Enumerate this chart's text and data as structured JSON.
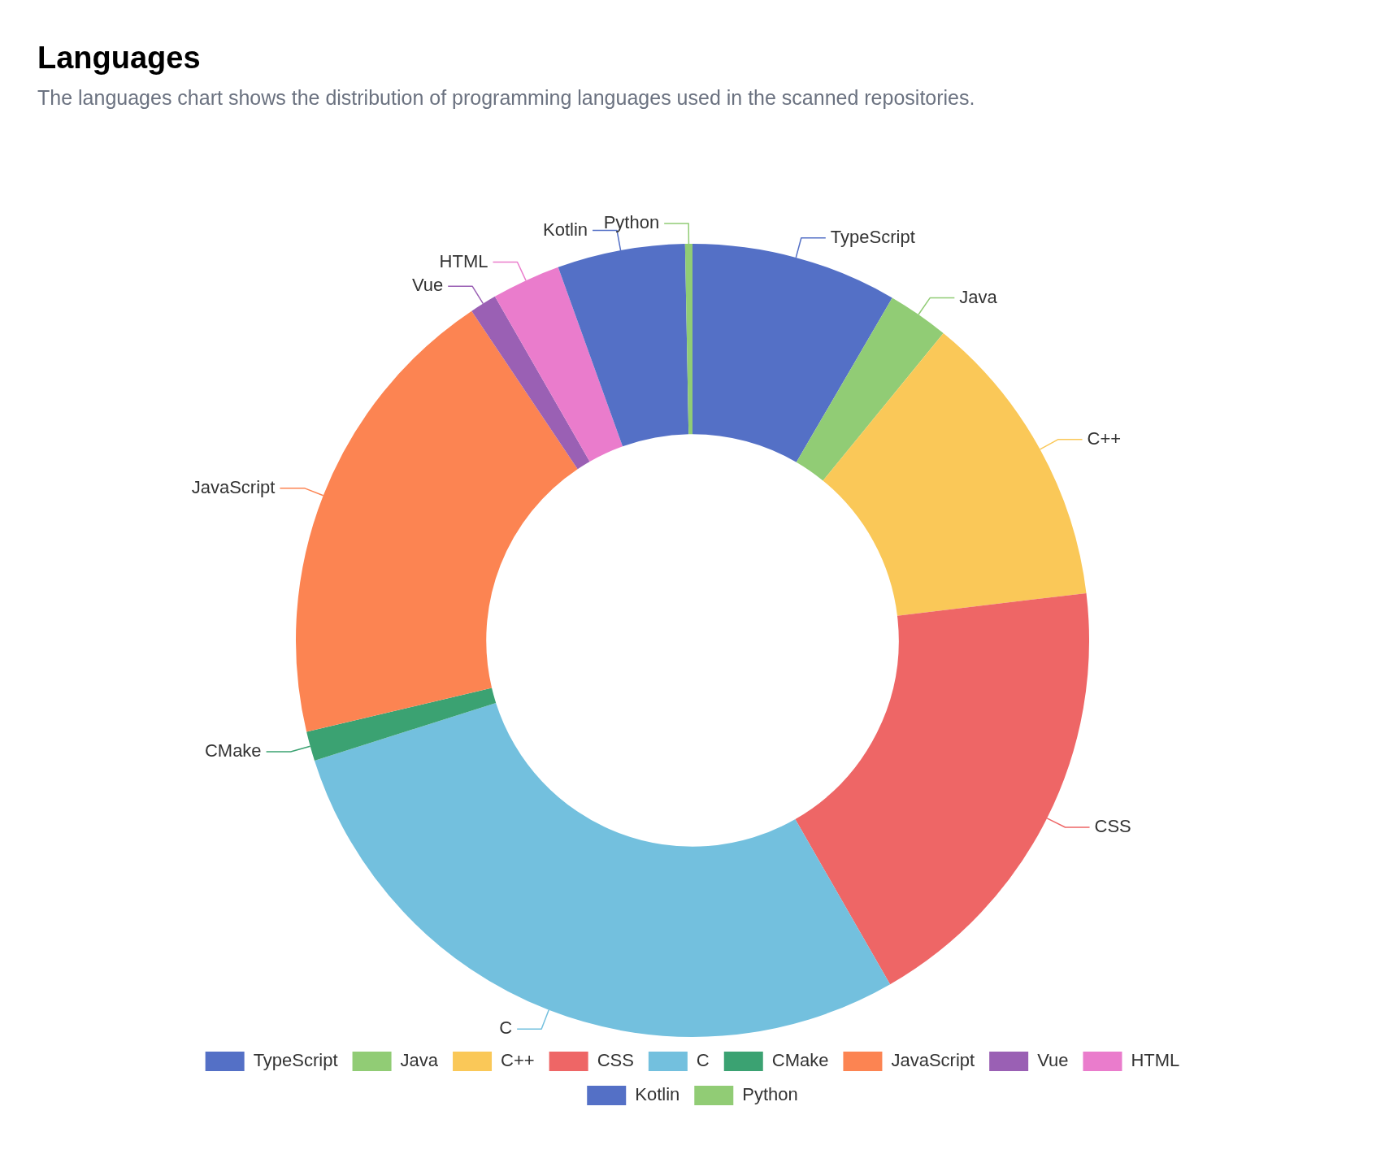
{
  "chart_data": {
    "type": "donut",
    "title": "Languages",
    "subtitle": "The languages chart shows the distribution of programming languages used in the scanned repositories.",
    "categories": [
      "TypeScript",
      "Java",
      "C++",
      "CSS",
      "C",
      "CMake",
      "JavaScript",
      "Vue",
      "HTML",
      "Kotlin",
      "Python"
    ],
    "values": [
      8.4,
      2.5,
      12.2,
      18.6,
      28.4,
      1.2,
      19.3,
      1.1,
      2.8,
      5.2,
      0.3
    ],
    "colors": [
      "#5470c6",
      "#91cc75",
      "#fac858",
      "#ee6666",
      "#73c0de",
      "#3ba272",
      "#fc8452",
      "#9a60b4",
      "#ea7ccc",
      "#5470c6",
      "#91cc75"
    ],
    "legend": "bottom"
  }
}
